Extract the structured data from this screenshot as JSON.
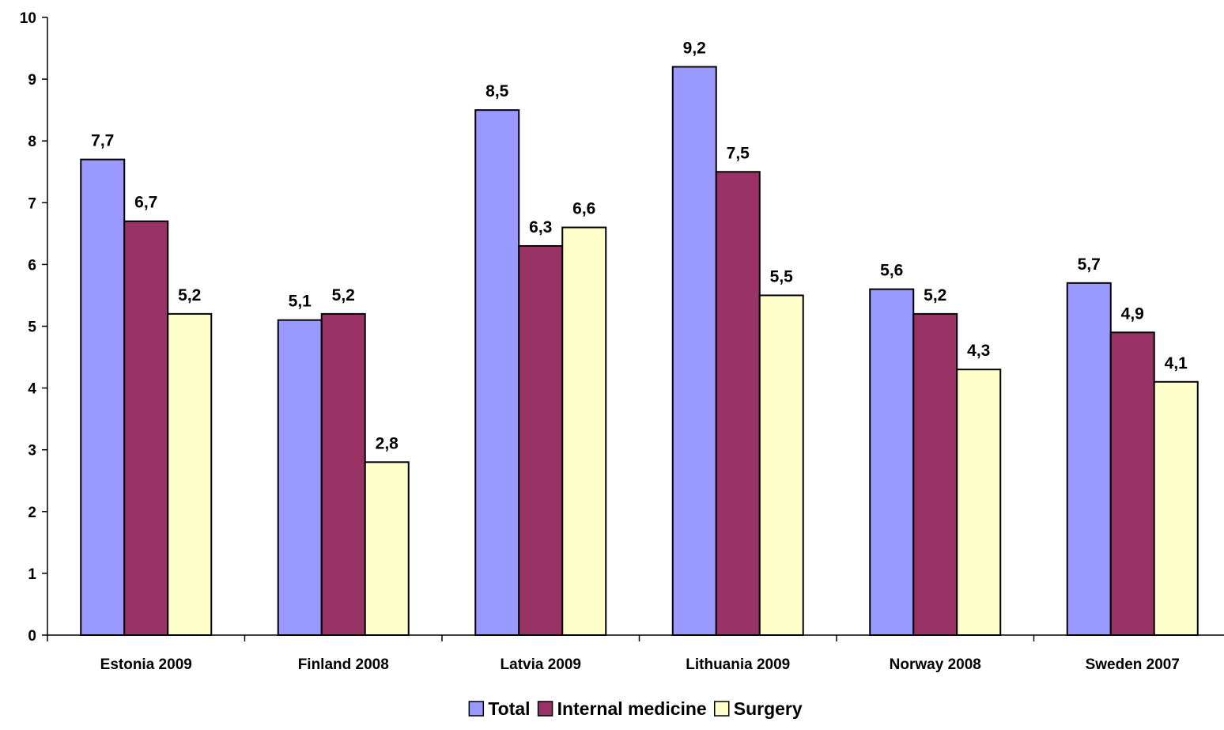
{
  "chart_data": {
    "type": "bar",
    "title": "",
    "xlabel": "",
    "ylabel": "",
    "ylim": [
      0,
      10
    ],
    "yticks": [
      "0",
      "1",
      "2",
      "3",
      "4",
      "5",
      "6",
      "7",
      "8",
      "9",
      "10"
    ],
    "grid": false,
    "legend_position": "bottom",
    "categories": [
      "Estonia 2009",
      "Finland 2008",
      "Latvia 2009",
      "Lithuania 2009",
      "Norway 2008",
      "Sweden 2007"
    ],
    "series": [
      {
        "name": "Total",
        "color": "#9999FF",
        "values": [
          7.7,
          5.1,
          8.5,
          9.2,
          5.6,
          5.7
        ],
        "labels": [
          "7,7",
          "5,1",
          "8,5",
          "9,2",
          "5,6",
          "5,7"
        ]
      },
      {
        "name": "Internal medicine",
        "color": "#993366",
        "values": [
          6.7,
          5.2,
          6.3,
          7.5,
          5.2,
          4.9
        ],
        "labels": [
          "6,7",
          "5,2",
          "6,3",
          "7,5",
          "5,2",
          "4,9"
        ]
      },
      {
        "name": "Surgery",
        "color": "#FFFFCC",
        "values": [
          5.2,
          2.8,
          6.6,
          5.5,
          4.3,
          4.1
        ],
        "labels": [
          "5,2",
          "2,8",
          "6,6",
          "5,5",
          "4,3",
          "4,1"
        ]
      }
    ]
  }
}
